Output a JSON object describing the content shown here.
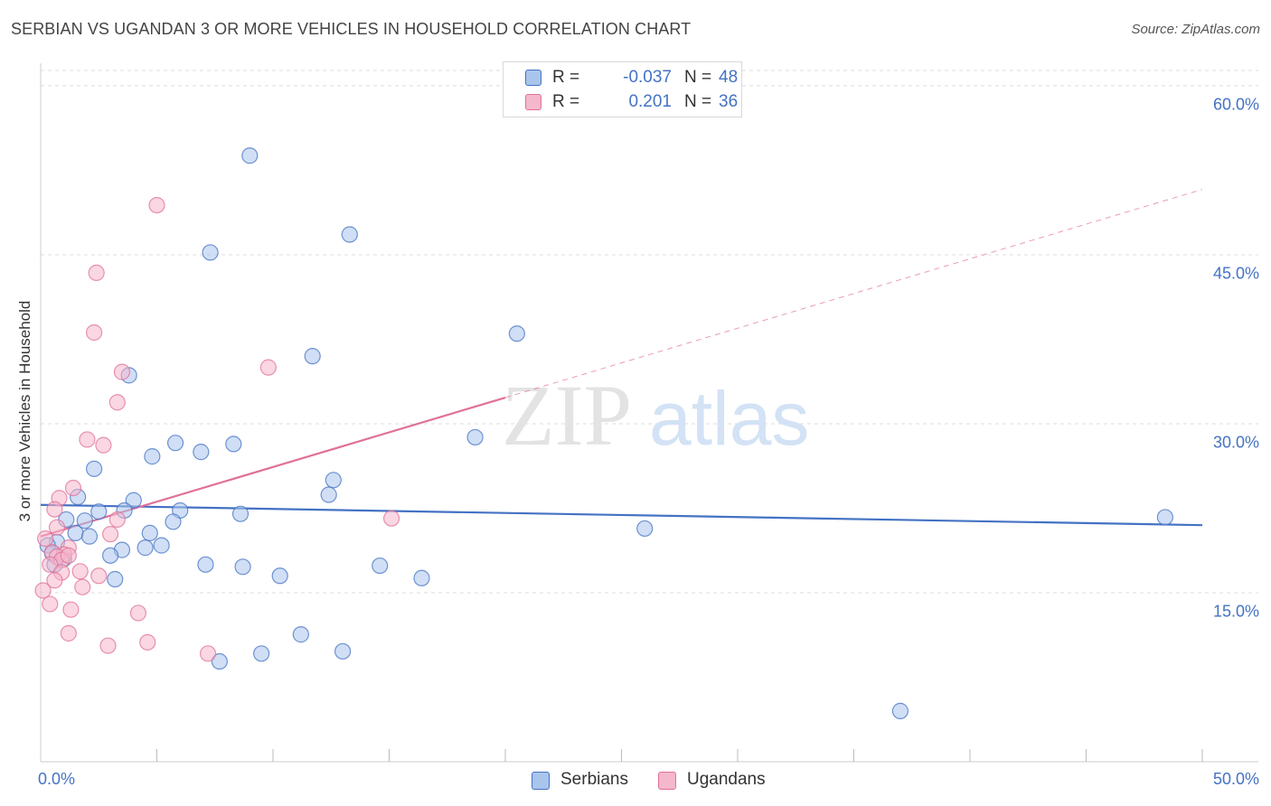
{
  "chart_data": {
    "type": "scatter",
    "title": "SERBIAN VS UGANDAN 3 OR MORE VEHICLES IN HOUSEHOLD CORRELATION CHART",
    "source": "Source: ZipAtlas.com",
    "ylabel": "3 or more Vehicles in Household",
    "xlabel": "",
    "xlim": [
      0,
      50
    ],
    "ylim": [
      0,
      62
    ],
    "x_tick_labels": {
      "min": "0.0%",
      "max": "50.0%"
    },
    "y_ticks": [
      {
        "value": 15,
        "label": "15.0%"
      },
      {
        "value": 30,
        "label": "30.0%"
      },
      {
        "value": 45,
        "label": "45.0%"
      },
      {
        "value": 60,
        "label": "60.0%"
      }
    ],
    "grid": true,
    "legend_position": "top-center",
    "watermark": "ZIPatlas",
    "series": [
      {
        "name": "Serbians",
        "color": "#4472c4",
        "fill": "#a9c5ec",
        "legend": {
          "r_label": "R =",
          "r_value": "-0.037",
          "n_label": "N =",
          "n_value": "48"
        },
        "trend": {
          "x0": 0,
          "y0": 22.8,
          "x1": 50,
          "y1": 21.0,
          "solid_to": 50
        },
        "points": [
          [
            9.0,
            53.8
          ],
          [
            7.3,
            45.2
          ],
          [
            13.3,
            46.8
          ],
          [
            20.5,
            38.0
          ],
          [
            11.7,
            36.0
          ],
          [
            3.8,
            34.3
          ],
          [
            18.7,
            28.8
          ],
          [
            5.8,
            28.3
          ],
          [
            8.3,
            28.2
          ],
          [
            6.9,
            27.5
          ],
          [
            4.8,
            27.1
          ],
          [
            2.3,
            26.0
          ],
          [
            12.6,
            25.0
          ],
          [
            12.4,
            23.7
          ],
          [
            1.6,
            23.5
          ],
          [
            4.0,
            23.2
          ],
          [
            6.0,
            22.3
          ],
          [
            3.6,
            22.3
          ],
          [
            2.5,
            22.2
          ],
          [
            8.6,
            22.0
          ],
          [
            1.9,
            21.4
          ],
          [
            5.7,
            21.3
          ],
          [
            1.1,
            21.5
          ],
          [
            4.7,
            20.3
          ],
          [
            1.5,
            20.3
          ],
          [
            2.1,
            20.0
          ],
          [
            0.7,
            19.5
          ],
          [
            4.5,
            19.0
          ],
          [
            5.2,
            19.2
          ],
          [
            0.3,
            19.2
          ],
          [
            3.5,
            18.8
          ],
          [
            0.5,
            18.5
          ],
          [
            3.0,
            18.3
          ],
          [
            1.0,
            18.0
          ],
          [
            0.6,
            17.5
          ],
          [
            7.1,
            17.5
          ],
          [
            8.7,
            17.3
          ],
          [
            14.6,
            17.4
          ],
          [
            10.3,
            16.5
          ],
          [
            3.2,
            16.2
          ],
          [
            16.4,
            16.3
          ],
          [
            26.0,
            20.7
          ],
          [
            48.4,
            21.7
          ],
          [
            11.2,
            11.3
          ],
          [
            13.0,
            9.8
          ],
          [
            9.5,
            9.6
          ],
          [
            7.7,
            8.9
          ],
          [
            37.0,
            4.5
          ]
        ]
      },
      {
        "name": "Ugandans",
        "color": "#e07098",
        "fill": "#f5b7cb",
        "legend": {
          "r_label": "R =",
          "r_value": "0.201",
          "n_label": "N =",
          "n_value": "36"
        },
        "trend": {
          "x0": 0,
          "y0": 20.0,
          "x1": 50,
          "y1": 50.8,
          "solid_to": 20
        },
        "points": [
          [
            5.0,
            49.4
          ],
          [
            2.4,
            43.4
          ],
          [
            2.3,
            38.1
          ],
          [
            3.5,
            34.6
          ],
          [
            9.8,
            35.0
          ],
          [
            3.3,
            31.9
          ],
          [
            2.0,
            28.6
          ],
          [
            2.7,
            28.1
          ],
          [
            1.4,
            24.3
          ],
          [
            0.8,
            23.4
          ],
          [
            3.3,
            21.5
          ],
          [
            0.6,
            22.4
          ],
          [
            15.1,
            21.6
          ],
          [
            0.7,
            20.8
          ],
          [
            3.0,
            20.2
          ],
          [
            0.2,
            19.8
          ],
          [
            1.2,
            19.0
          ],
          [
            0.5,
            18.6
          ],
          [
            1.0,
            18.4
          ],
          [
            0.7,
            18.2
          ],
          [
            0.9,
            17.9
          ],
          [
            1.2,
            18.3
          ],
          [
            0.4,
            17.5
          ],
          [
            1.7,
            16.9
          ],
          [
            0.9,
            16.8
          ],
          [
            2.5,
            16.5
          ],
          [
            0.6,
            16.1
          ],
          [
            1.8,
            15.5
          ],
          [
            0.1,
            15.2
          ],
          [
            1.3,
            13.5
          ],
          [
            4.2,
            13.2
          ],
          [
            1.2,
            11.4
          ],
          [
            4.6,
            10.6
          ],
          [
            2.9,
            10.3
          ],
          [
            7.2,
            9.6
          ],
          [
            0.4,
            14.0
          ]
        ]
      }
    ]
  }
}
